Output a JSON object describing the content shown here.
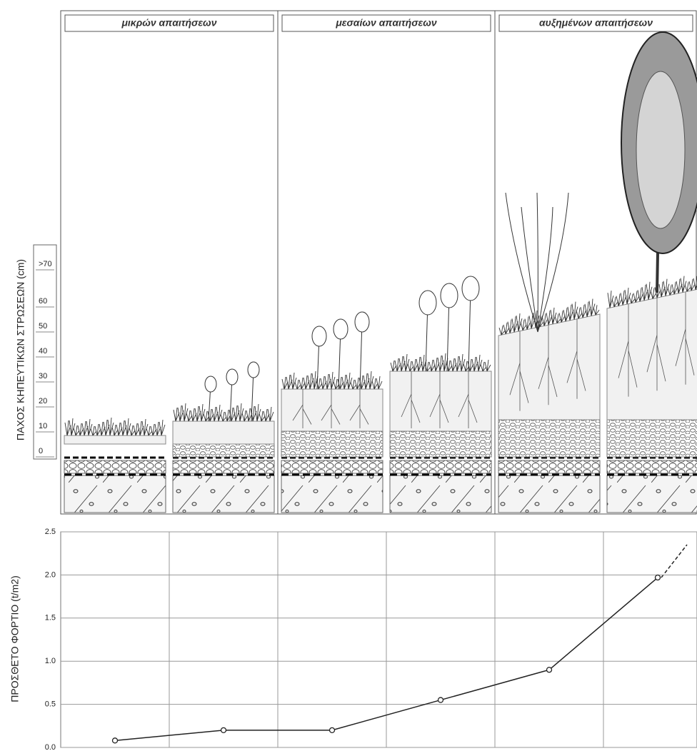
{
  "header": {
    "columns": [
      "μικρών απαιτήσεων",
      "μεσαίων απαιτήσεων",
      "αυξημένων απαιτήσεων"
    ]
  },
  "thickness_axis": {
    "label": "ΠΑΧΟΣ ΚΗΠΕΥΤΙΚΩΝ ΣΤΡΩΣΕΩΝ (cm)",
    "ticks": [
      "0",
      "10",
      "20",
      "30",
      "40",
      "50",
      "60",
      ">70"
    ]
  },
  "chart_data": {
    "type": "line",
    "ylabel": "ΠΡΟΣΘΕΤΟ ΦΟΡΤΙΟ (t/m2)",
    "categories": [
      null,
      null,
      null,
      null,
      null,
      null
    ],
    "values": [
      0.08,
      0.2,
      0.2,
      0.55,
      0.9,
      1.97
    ],
    "color": "#222222",
    "ylim": [
      0,
      2.5
    ],
    "yticks": [
      {
        "value": 0,
        "label": "0.0"
      },
      {
        "value": 0.5,
        "label": "0.5"
      },
      {
        "value": 1,
        "label": "1.0"
      },
      {
        "value": 1.5,
        "label": "1.5"
      },
      {
        "value": 2,
        "label": "2.0"
      },
      {
        "value": 2.5,
        "label": "2.5"
      }
    ],
    "grid": true
  }
}
